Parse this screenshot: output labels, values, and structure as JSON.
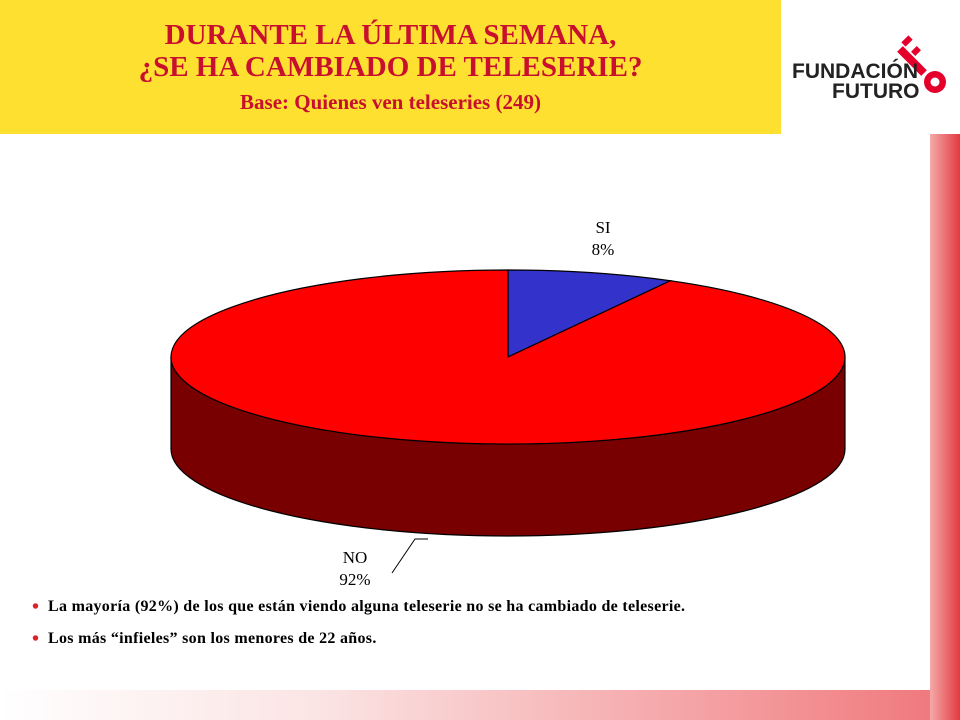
{
  "header": {
    "title_line1": "DURANTE LA ÚLTIMA SEMANA,",
    "title_line2": "¿SE HA CAMBIADO DE TELESERIE?",
    "subtitle": "Base: Quienes ven teleseries (249)"
  },
  "logo": {
    "line1": "FUNDACIÓN",
    "line2": "FUTURO"
  },
  "chart_data": {
    "type": "pie",
    "style": "3d",
    "slices": [
      {
        "label": "SI",
        "value": 8,
        "value_label": "8%",
        "color": "#3333cc"
      },
      {
        "label": "NO",
        "value": 92,
        "value_label": "92%",
        "color": "#ff0000"
      }
    ]
  },
  "bullets": [
    {
      "marker": "•",
      "text": "La mayoría (92%) de los que están viendo alguna teleserie no se ha cambiado de teleserie."
    },
    {
      "marker": "•",
      "text": "Los más “infieles” son los menores de 22 años."
    }
  ],
  "colors": {
    "title_bg": "#fee130",
    "title_text": "#c8102e",
    "accent": "#e23a3f"
  }
}
